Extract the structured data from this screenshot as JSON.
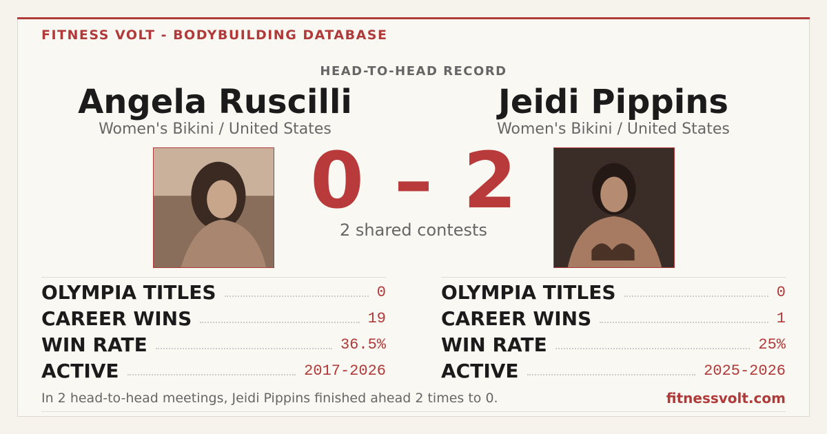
{
  "header": {
    "title": "FITNESS VOLT - BODYBUILDING DATABASE"
  },
  "subtitle": "HEAD-TO-HEAD RECORD",
  "left": {
    "name": "Angela Ruscilli",
    "division": "Women's Bikini / United States",
    "stats": [
      {
        "label": "OLYMPIA TITLES",
        "value": "0"
      },
      {
        "label": "CAREER WINS",
        "value": "19"
      },
      {
        "label": "WIN RATE",
        "value": "36.5%"
      },
      {
        "label": "ACTIVE",
        "value": "2017-2026"
      }
    ]
  },
  "right": {
    "name": "Jeidi Pippins",
    "division": "Women's Bikini / United States",
    "stats": [
      {
        "label": "OLYMPIA TITLES",
        "value": "0"
      },
      {
        "label": "CAREER WINS",
        "value": "1"
      },
      {
        "label": "WIN RATE",
        "value": "25%"
      },
      {
        "label": "ACTIVE",
        "value": "2025-2026"
      }
    ]
  },
  "score": {
    "left": "0",
    "separator": "–",
    "right": "2",
    "note": "2 shared contests"
  },
  "footer": {
    "text": "In 2 head-to-head meetings, Jeidi Pippins finished ahead 2 times to 0.",
    "site": "fitnessvolt.com"
  }
}
